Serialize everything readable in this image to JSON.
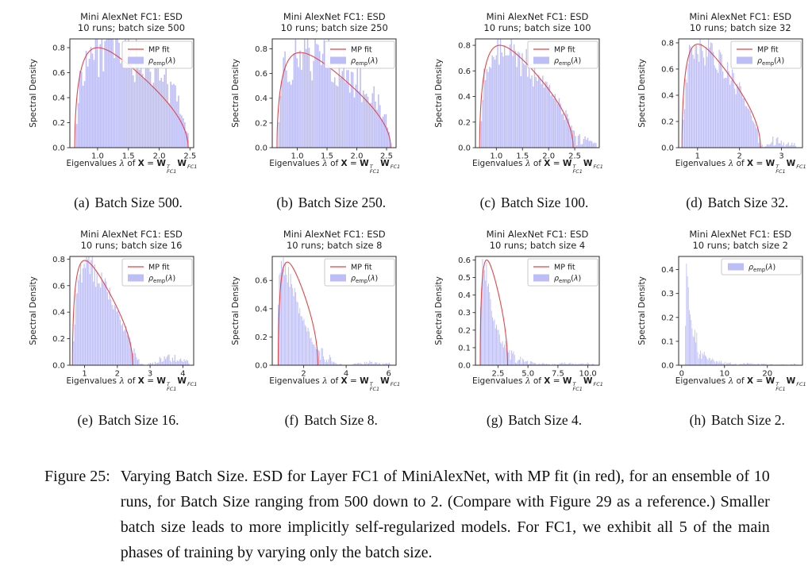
{
  "figure": {
    "caption_label": "Figure 25:",
    "caption_text": "Varying Batch Size. ESD for Layer FC1 of MiniAlexNet, with MP fit (in red), for an ensemble of 10 runs, for Batch Size ranging from 500 down to 2. (Compare with Figure 29 as a reference.) Smaller batch size leads to more implicitly self-regularized models. For FC1, we exhibit all 5 of the main phases of training by varying only the batch size."
  },
  "shared": {
    "title_line1": "Mini AlexNet FC1: ESD",
    "ylabel": "Spectral Density",
    "xlabel": {
      "pre": "Eigenvalues ",
      "lambda": "λ",
      "of": " of ",
      "X": "X",
      "eq": " = ",
      "W": "W",
      "sup": "T",
      "sub": "FC1"
    },
    "legend": {
      "mp": "MP fit",
      "rho": {
        "base": "ρ",
        "sub": "emp",
        "open": "(",
        "lambda": "λ",
        "close": ")"
      }
    },
    "colors": {
      "hist_fill": "#bdbdf8",
      "mp_line": "#e64545",
      "axis": "#2b2b2b",
      "text": "#262626",
      "legend_border": "#bbbbbb"
    }
  },
  "chart_data": [
    {
      "id": "a",
      "type": "histogram",
      "title_line2": "10 runs; batch size 500",
      "caption_letter": "(a)",
      "caption_rest": "Batch Size 500.",
      "has_mp_fit": true,
      "xlim": [
        0.55,
        2.56
      ],
      "ylim": [
        0,
        0.87
      ],
      "x_tick_values": [
        1.0,
        1.5,
        2.0,
        2.5
      ],
      "x_tick_labels": [
        "1.0",
        "1.5",
        "2.0",
        "2.5"
      ],
      "y_tick_values": [
        0.0,
        0.2,
        0.4,
        0.6,
        0.8
      ],
      "y_tick_labels": [
        "0.0",
        "0.2",
        "0.4",
        "0.6",
        "0.8"
      ],
      "mp_fit": {
        "lambda_min": 0.63,
        "lambda_max": 2.47,
        "peak": 0.8
      },
      "hist_envelope": [
        [
          0.65,
          0.07
        ],
        [
          0.7,
          0.5
        ],
        [
          0.76,
          0.66
        ],
        [
          0.85,
          0.74
        ],
        [
          1.0,
          0.79
        ],
        [
          1.15,
          0.8
        ],
        [
          1.3,
          0.78
        ],
        [
          1.5,
          0.74
        ],
        [
          1.7,
          0.69
        ],
        [
          1.9,
          0.61
        ],
        [
          2.1,
          0.52
        ],
        [
          2.25,
          0.43
        ],
        [
          2.38,
          0.3
        ],
        [
          2.45,
          0.16
        ],
        [
          2.48,
          0.07
        ]
      ],
      "bins": 72,
      "noise": 0.13
    },
    {
      "id": "b",
      "type": "histogram",
      "title_line2": "10 runs; batch size 250",
      "caption_letter": "(b)",
      "caption_rest": "Batch Size 250.",
      "has_mp_fit": true,
      "xlim": [
        0.58,
        2.66
      ],
      "ylim": [
        0,
        0.88
      ],
      "x_tick_values": [
        1.0,
        1.5,
        2.0,
        2.5
      ],
      "x_tick_labels": [
        "1.0",
        "1.5",
        "2.0",
        "2.5"
      ],
      "y_tick_values": [
        0.0,
        0.2,
        0.4,
        0.6,
        0.8
      ],
      "y_tick_labels": [
        "0.0",
        "0.2",
        "0.4",
        "0.6",
        "0.8"
      ],
      "mp_fit": {
        "lambda_min": 0.66,
        "lambda_max": 2.57,
        "peak": 0.77
      },
      "hist_envelope": [
        [
          0.68,
          0.18
        ],
        [
          0.73,
          0.5
        ],
        [
          0.8,
          0.64
        ],
        [
          0.92,
          0.72
        ],
        [
          1.08,
          0.76
        ],
        [
          1.25,
          0.76
        ],
        [
          1.45,
          0.72
        ],
        [
          1.65,
          0.67
        ],
        [
          1.85,
          0.6
        ],
        [
          2.05,
          0.53
        ],
        [
          2.25,
          0.43
        ],
        [
          2.42,
          0.31
        ],
        [
          2.52,
          0.2
        ],
        [
          2.58,
          0.08
        ]
      ],
      "bins": 75,
      "noise": 0.13
    },
    {
      "id": "c",
      "type": "histogram",
      "title_line2": "10 runs; batch size 100",
      "caption_letter": "(c)",
      "caption_rest": "Batch Size 100.",
      "has_mp_fit": true,
      "xlim": [
        0.6,
        2.97
      ],
      "ylim": [
        0,
        0.85
      ],
      "x_tick_values": [
        1.0,
        1.5,
        2.0,
        2.5
      ],
      "x_tick_labels": [
        "1.0",
        "1.5",
        "2.0",
        "2.5"
      ],
      "y_tick_values": [
        0.0,
        0.2,
        0.4,
        0.6,
        0.8
      ],
      "y_tick_labels": [
        "0.0",
        "0.2",
        "0.4",
        "0.6",
        "0.8"
      ],
      "mp_fit": {
        "lambda_min": 0.68,
        "lambda_max": 2.47,
        "peak": 0.8
      },
      "hist_envelope": [
        [
          0.7,
          0.1
        ],
        [
          0.76,
          0.55
        ],
        [
          0.84,
          0.7
        ],
        [
          0.95,
          0.76
        ],
        [
          1.1,
          0.79
        ],
        [
          1.25,
          0.76
        ],
        [
          1.45,
          0.7
        ],
        [
          1.65,
          0.62
        ],
        [
          1.85,
          0.53
        ],
        [
          2.05,
          0.43
        ],
        [
          2.2,
          0.34
        ],
        [
          2.35,
          0.24
        ],
        [
          2.48,
          0.12
        ],
        [
          2.55,
          0.06
        ],
        [
          2.65,
          0.05
        ],
        [
          2.75,
          0.06
        ],
        [
          2.85,
          0.04
        ],
        [
          2.92,
          0.02
        ]
      ],
      "bins": 85,
      "noise": 0.09
    },
    {
      "id": "d",
      "type": "histogram",
      "title_line2": "10 runs; batch size 32",
      "caption_letter": "(d)",
      "caption_rest": "Batch Size 32.",
      "has_mp_fit": true,
      "xlim": [
        0.55,
        3.5
      ],
      "ylim": [
        0,
        0.83
      ],
      "x_tick_values": [
        1,
        2,
        3
      ],
      "x_tick_labels": [
        "1",
        "2",
        "3"
      ],
      "y_tick_values": [
        0.0,
        0.2,
        0.4,
        0.6,
        0.8
      ],
      "y_tick_labels": [
        "0.0",
        "0.2",
        "0.4",
        "0.6",
        "0.8"
      ],
      "mp_fit": {
        "lambda_min": 0.63,
        "lambda_max": 2.5,
        "peak": 0.79
      },
      "hist_envelope": [
        [
          0.65,
          0.1
        ],
        [
          0.72,
          0.52
        ],
        [
          0.8,
          0.68
        ],
        [
          0.92,
          0.75
        ],
        [
          1.08,
          0.78
        ],
        [
          1.25,
          0.74
        ],
        [
          1.45,
          0.67
        ],
        [
          1.65,
          0.59
        ],
        [
          1.85,
          0.5
        ],
        [
          2.05,
          0.4
        ],
        [
          2.2,
          0.31
        ],
        [
          2.35,
          0.21
        ],
        [
          2.45,
          0.1
        ],
        [
          2.52,
          0.03
        ],
        [
          2.58,
          0.0
        ],
        [
          2.65,
          0.02
        ],
        [
          2.75,
          0.04
        ],
        [
          2.85,
          0.05
        ],
        [
          2.95,
          0.04
        ],
        [
          3.05,
          0.03
        ],
        [
          3.15,
          0.03
        ],
        [
          3.25,
          0.03
        ],
        [
          3.35,
          0.02
        ]
      ],
      "bins": 95,
      "noise": 0.08
    },
    {
      "id": "e",
      "type": "histogram",
      "title_line2": "10 runs; batch size 16",
      "caption_letter": "(e)",
      "caption_rest": "Batch Size 16.",
      "has_mp_fit": true,
      "xlim": [
        0.55,
        4.33
      ],
      "ylim": [
        0,
        0.82
      ],
      "x_tick_values": [
        1,
        2,
        3,
        4
      ],
      "x_tick_labels": [
        "1",
        "2",
        "3",
        "4"
      ],
      "y_tick_values": [
        0.0,
        0.2,
        0.4,
        0.6,
        0.8
      ],
      "y_tick_labels": [
        "0.0",
        "0.2",
        "0.4",
        "0.6",
        "0.8"
      ],
      "mp_fit": {
        "lambda_min": 0.63,
        "lambda_max": 2.47,
        "peak": 0.79
      },
      "hist_envelope": [
        [
          0.65,
          0.08
        ],
        [
          0.73,
          0.5
        ],
        [
          0.82,
          0.66
        ],
        [
          0.95,
          0.74
        ],
        [
          1.1,
          0.76
        ],
        [
          1.28,
          0.72
        ],
        [
          1.48,
          0.65
        ],
        [
          1.68,
          0.57
        ],
        [
          1.88,
          0.48
        ],
        [
          2.08,
          0.37
        ],
        [
          2.25,
          0.27
        ],
        [
          2.4,
          0.16
        ],
        [
          2.5,
          0.08
        ],
        [
          2.6,
          0.04
        ],
        [
          2.7,
          0.02
        ],
        [
          2.85,
          0.0
        ],
        [
          3.0,
          0.01
        ],
        [
          3.15,
          0.02
        ],
        [
          3.3,
          0.04
        ],
        [
          3.5,
          0.05
        ],
        [
          3.7,
          0.05
        ],
        [
          3.9,
          0.04
        ],
        [
          4.05,
          0.03
        ],
        [
          4.2,
          0.02
        ]
      ],
      "bins": 100,
      "noise": 0.07
    },
    {
      "id": "f",
      "type": "histogram",
      "title_line2": "10 runs; batch size 8",
      "caption_letter": "(f)",
      "caption_rest": "Batch Size 8.",
      "has_mp_fit": true,
      "xlim": [
        0.52,
        6.35
      ],
      "ylim": [
        0,
        0.77
      ],
      "x_tick_values": [
        2,
        4,
        6
      ],
      "x_tick_labels": [
        "2",
        "4",
        "6"
      ],
      "y_tick_values": [
        0.0,
        0.2,
        0.4,
        0.6
      ],
      "y_tick_labels": [
        "0.0",
        "0.2",
        "0.4",
        "0.6"
      ],
      "mp_fit": {
        "lambda_min": 0.8,
        "lambda_max": 2.67,
        "peak": 0.73
      },
      "hist_envelope": [
        [
          0.78,
          0.28
        ],
        [
          0.85,
          0.58
        ],
        [
          0.95,
          0.68
        ],
        [
          1.08,
          0.68
        ],
        [
          1.25,
          0.63
        ],
        [
          1.45,
          0.56
        ],
        [
          1.65,
          0.47
        ],
        [
          1.85,
          0.38
        ],
        [
          2.05,
          0.3
        ],
        [
          2.25,
          0.22
        ],
        [
          2.45,
          0.15
        ],
        [
          2.65,
          0.11
        ],
        [
          2.85,
          0.08
        ],
        [
          3.05,
          0.06
        ],
        [
          3.25,
          0.04
        ],
        [
          3.45,
          0.02
        ],
        [
          3.65,
          0.01
        ],
        [
          3.9,
          0.0
        ],
        [
          4.2,
          0.0
        ],
        [
          4.4,
          0.01
        ],
        [
          4.7,
          0.01
        ],
        [
          5.0,
          0.02
        ],
        [
          5.3,
          0.02
        ],
        [
          5.6,
          0.01
        ],
        [
          5.9,
          0.01
        ],
        [
          6.1,
          0.01
        ]
      ],
      "bins": 110,
      "noise": 0.06
    },
    {
      "id": "g",
      "type": "histogram",
      "title_line2": "10 runs; batch size 4",
      "caption_letter": "(g)",
      "caption_rest": "Batch Size 4.",
      "has_mp_fit": true,
      "xlim": [
        0.62,
        10.95
      ],
      "ylim": [
        0,
        0.62
      ],
      "x_tick_values": [
        2.5,
        5.0,
        7.5,
        10.0
      ],
      "x_tick_labels": [
        "2.5",
        "5.0",
        "7.5",
        "10.0"
      ],
      "y_tick_values": [
        0.0,
        0.1,
        0.2,
        0.3,
        0.4,
        0.5,
        0.6
      ],
      "y_tick_labels": [
        "0.0",
        "0.1",
        "0.2",
        "0.3",
        "0.4",
        "0.5",
        "0.6"
      ],
      "mp_fit": {
        "lambda_min": 1.02,
        "lambda_max": 3.3,
        "peak": 0.6
      },
      "hist_envelope": [
        [
          1.0,
          0.3
        ],
        [
          1.1,
          0.5
        ],
        [
          1.22,
          0.58
        ],
        [
          1.35,
          0.6
        ],
        [
          1.5,
          0.54
        ],
        [
          1.65,
          0.46
        ],
        [
          1.8,
          0.39
        ],
        [
          2.0,
          0.32
        ],
        [
          2.2,
          0.26
        ],
        [
          2.45,
          0.2
        ],
        [
          2.7,
          0.15
        ],
        [
          3.0,
          0.11
        ],
        [
          3.3,
          0.08
        ],
        [
          3.6,
          0.06
        ],
        [
          3.9,
          0.04
        ],
        [
          4.3,
          0.03
        ],
        [
          4.7,
          0.02
        ],
        [
          5.1,
          0.015
        ],
        [
          5.6,
          0.01
        ],
        [
          6.1,
          0.008
        ],
        [
          6.6,
          0.006
        ],
        [
          7.1,
          0.006
        ],
        [
          7.6,
          0.008
        ],
        [
          8.1,
          0.01
        ],
        [
          8.6,
          0.008
        ],
        [
          9.1,
          0.01
        ],
        [
          9.6,
          0.008
        ],
        [
          10.1,
          0.01
        ],
        [
          10.6,
          0.006
        ]
      ],
      "bins": 115,
      "noise": 0.07
    },
    {
      "id": "h",
      "type": "histogram",
      "title_line2": "10 runs; batch size 2",
      "caption_letter": "(h)",
      "caption_rest": "Batch Size 2.",
      "has_mp_fit": false,
      "xlim": [
        -0.7,
        28.2
      ],
      "ylim": [
        0,
        0.455
      ],
      "x_tick_values": [
        0,
        10,
        20
      ],
      "x_tick_labels": [
        "0",
        "10",
        "20"
      ],
      "y_tick_values": [
        0.0,
        0.1,
        0.2,
        0.3,
        0.4
      ],
      "y_tick_labels": [
        "0.0",
        "0.1",
        "0.2",
        "0.3",
        "0.4"
      ],
      "mp_fit": null,
      "hist_envelope": [
        [
          0.8,
          0.06
        ],
        [
          1.0,
          0.3
        ],
        [
          1.15,
          0.43
        ],
        [
          1.3,
          0.4
        ],
        [
          1.5,
          0.33
        ],
        [
          1.7,
          0.27
        ],
        [
          1.95,
          0.22
        ],
        [
          2.2,
          0.18
        ],
        [
          2.5,
          0.15
        ],
        [
          2.8,
          0.12
        ],
        [
          3.2,
          0.095
        ],
        [
          3.6,
          0.075
        ],
        [
          4.0,
          0.06
        ],
        [
          4.5,
          0.05
        ],
        [
          5.0,
          0.04
        ],
        [
          5.5,
          0.032
        ],
        [
          6.0,
          0.027
        ],
        [
          6.7,
          0.022
        ],
        [
          7.4,
          0.018
        ],
        [
          8.1,
          0.014
        ],
        [
          8.8,
          0.012
        ],
        [
          9.6,
          0.01
        ],
        [
          10.4,
          0.009
        ],
        [
          11.2,
          0.008
        ],
        [
          12.0,
          0.006
        ],
        [
          12.8,
          0.004
        ],
        [
          13.6,
          0.004
        ],
        [
          14.4,
          0.006
        ],
        [
          15.2,
          0.007
        ],
        [
          16.0,
          0.007
        ],
        [
          16.8,
          0.006
        ],
        [
          17.6,
          0.005
        ],
        [
          18.4,
          0.005
        ],
        [
          19.2,
          0.004
        ],
        [
          20.0,
          0.005
        ],
        [
          20.8,
          0.004
        ],
        [
          21.6,
          0.003
        ],
        [
          22.4,
          0.002
        ],
        [
          23.2,
          0.003
        ],
        [
          24.0,
          0.003
        ],
        [
          24.8,
          0.002
        ],
        [
          25.6,
          0.003
        ],
        [
          26.4,
          0.004
        ],
        [
          27.0,
          0.004
        ]
      ],
      "bins": 120,
      "noise": 0.07
    }
  ]
}
